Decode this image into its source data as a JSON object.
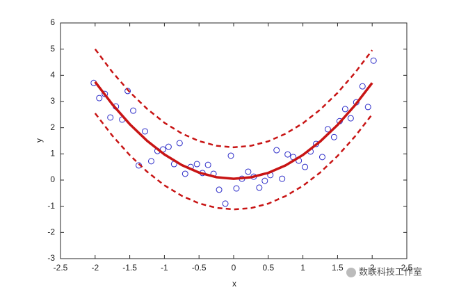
{
  "chart_data": {
    "type": "scatter",
    "xlabel": "x",
    "ylabel": "y",
    "xlim": [
      -2.5,
      2.5
    ],
    "ylim": [
      -3,
      6
    ],
    "xticks": [
      -2.5,
      -2,
      -1.5,
      -1,
      -0.5,
      0,
      0.5,
      1,
      1.5,
      2,
      2.5
    ],
    "yticks": [
      -3,
      -2,
      -1,
      0,
      1,
      2,
      3,
      4,
      5,
      6
    ],
    "watermark": "数联科技工作室",
    "series": [
      {
        "style": "markers",
        "color": "#2b2bc8",
        "x": [
          -2.02,
          -1.94,
          -1.86,
          -1.78,
          -1.7,
          -1.61,
          -1.53,
          -1.45,
          -1.37,
          -1.28,
          -1.19,
          -1.1,
          -1.02,
          -0.94,
          -0.86,
          -0.78,
          -0.7,
          -0.62,
          -0.53,
          -0.45,
          -0.37,
          -0.29,
          -0.21,
          -0.12,
          -0.04,
          0.04,
          0.12,
          0.21,
          0.29,
          0.37,
          0.45,
          0.53,
          0.62,
          0.7,
          0.78,
          0.86,
          0.94,
          1.03,
          1.11,
          1.19,
          1.28,
          1.36,
          1.45,
          1.53,
          1.61,
          1.69,
          1.77,
          1.86,
          1.94,
          2.02
        ],
        "values": [
          3.71,
          3.13,
          3.29,
          2.39,
          2.81,
          2.31,
          3.4,
          2.65,
          0.56,
          1.86,
          0.72,
          1.11,
          1.17,
          1.27,
          0.61,
          1.41,
          0.24,
          0.5,
          0.61,
          0.27,
          0.58,
          0.24,
          -0.37,
          -0.9,
          0.93,
          -0.32,
          0.05,
          0.32,
          0.13,
          -0.29,
          -0.03,
          0.19,
          1.14,
          0.05,
          0.98,
          0.88,
          0.74,
          0.5,
          1.09,
          1.38,
          0.88,
          1.94,
          1.64,
          2.25,
          2.71,
          2.36,
          2.97,
          3.58,
          2.79,
          4.56
        ]
      },
      {
        "style": "solid",
        "color": "#c81414",
        "x": [
          -2,
          -1.75,
          -1.5,
          -1.25,
          -1,
          -0.75,
          -0.5,
          -0.25,
          0,
          0.25,
          0.5,
          0.75,
          1,
          1.25,
          1.5,
          1.75,
          2
        ],
        "values": [
          3.75,
          2.885,
          2.135,
          1.5,
          0.98,
          0.575,
          0.285,
          0.11,
          0.05,
          0.105,
          0.275,
          0.56,
          0.96,
          1.475,
          2.105,
          2.85,
          3.71
        ]
      },
      {
        "style": "dashed",
        "color": "#c81414",
        "x": [
          -2,
          -1.75,
          -1.5,
          -1.25,
          -1,
          -0.75,
          -0.5,
          -0.25,
          0,
          0.25,
          0.5,
          0.75,
          1,
          1.25,
          1.5,
          1.75,
          2
        ],
        "values": [
          5.0,
          4.12,
          3.36,
          2.72,
          2.19,
          1.78,
          1.49,
          1.31,
          1.25,
          1.31,
          1.48,
          1.77,
          2.17,
          2.69,
          3.33,
          4.09,
          4.96
        ]
      },
      {
        "style": "dashed",
        "color": "#c81414",
        "x": [
          -2,
          -1.75,
          -1.5,
          -1.25,
          -1,
          -0.75,
          -0.5,
          -0.25,
          0,
          0.25,
          0.5,
          0.75,
          1,
          1.25,
          1.5,
          1.75,
          2
        ],
        "values": [
          2.55,
          1.69,
          0.95,
          0.32,
          -0.2,
          -0.6,
          -0.89,
          -1.06,
          -1.12,
          -1.07,
          -0.9,
          -0.61,
          -0.22,
          0.29,
          0.92,
          1.66,
          2.51
        ]
      }
    ]
  }
}
